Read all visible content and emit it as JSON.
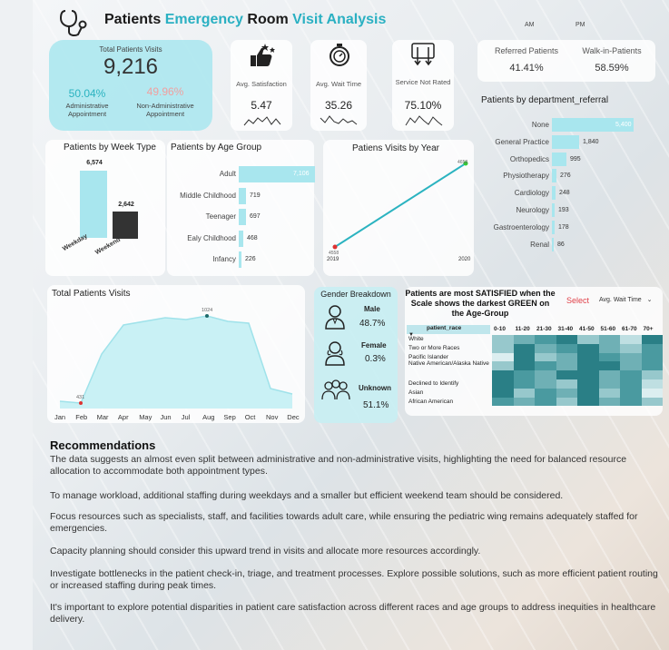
{
  "header": {
    "title_parts": [
      "Patients ",
      "Emergency",
      " Room ",
      "Visit Analysis"
    ],
    "am_label": "AM",
    "pm_label": "PM",
    "logo_icon": "stethoscope-icon"
  },
  "kpi_total": {
    "label": "Total Patients Visits",
    "value": "9,216",
    "admin_pct": "50.04%",
    "admin_label": "Administrative Appointment",
    "nonadmin_pct": "49.96%",
    "nonadmin_label": "Non-Administrative Appointment"
  },
  "kpi_satisfaction": {
    "label": "Avg. Satisfaction",
    "value": "5.47",
    "icon": "thumbs-up-stars-icon"
  },
  "kpi_wait": {
    "label": "Avg. Wait Time",
    "value": "35.26",
    "icon": "stopwatch-icon"
  },
  "kpi_not_rated": {
    "label": "Service Not Rated",
    "value": "75.10%",
    "icon": "rating-arrows-icon"
  },
  "referral": {
    "referred_label": "Referred Patients",
    "referred_value": "41.41%",
    "walkin_label": "Walk-in-Patients",
    "walkin_value": "58.59%"
  },
  "dept_chart": {
    "title": "Patients by department_referral",
    "categories": [
      "None",
      "General Practice",
      "Orthopedics",
      "Physiotherapy",
      "Cardiology",
      "Neurology",
      "Gastroenterology",
      "Renal"
    ],
    "value_labels": [
      "5,400",
      "1,840",
      "995",
      "276",
      "248",
      "193",
      "178",
      "86"
    ]
  },
  "week_chart": {
    "title": "Patients by Week Type",
    "categories": [
      "Weekday",
      "Weekend"
    ],
    "value_labels": [
      "6,574",
      "2,642"
    ]
  },
  "age_chart": {
    "title": "Patients by Age Group",
    "categories": [
      "Adult",
      "Middle Childhood",
      "Teenager",
      "Ealy Childhood",
      "Infancy"
    ],
    "value_labels": [
      "7,106",
      "719",
      "697",
      "468",
      "226"
    ]
  },
  "year_chart": {
    "title": "Patiens Visits by Year",
    "x_labels": [
      "2019",
      "2020"
    ],
    "point_labels": [
      "4558",
      "4658"
    ]
  },
  "total_visits_chart": {
    "title": "Total Patients Visits",
    "months": [
      "Jan",
      "Feb",
      "Mar",
      "Apr",
      "May",
      "Jun",
      "Jul",
      "Aug",
      "Sep",
      "Oct",
      "Nov",
      "Dec"
    ],
    "min_label": "431",
    "max_label": "1024"
  },
  "gender": {
    "title": "Gender Breakdown",
    "items": [
      {
        "label": "Male",
        "value": "48.7%",
        "icon": "male-user-icon"
      },
      {
        "label": "Female",
        "value": "0.3%",
        "icon": "female-user-icon"
      },
      {
        "label": "Unknown",
        "value": "51.1%",
        "icon": "group-users-icon"
      }
    ]
  },
  "heatmap": {
    "title": "Patients are most SATISFIED when the Scale shows the darkest GREEN on the Age-Group",
    "select_label": "Select",
    "select_value": "Avg. Wait Time",
    "row_header": "patient_race",
    "age_groups": [
      "0-10",
      "11-20",
      "21-30",
      "31-40",
      "41-50",
      "51-60",
      "61-70",
      "70+"
    ],
    "races": [
      "White",
      "Two or More Races",
      "Pacific Islander",
      "Native American/Alaska Native",
      "Declined to Identify",
      "Asian",
      "African American"
    ]
  },
  "recommendations": {
    "title": "Recommendations",
    "items": [
      "The data suggests an almost even split between administrative and non-administrative visits, highlighting the need for balanced resource allocation to accommodate both appointment types.",
      "To manage workload, additional staffing during weekdays and a smaller but efficient weekend team should be considered.",
      " Focus resources such as specialists, staff, and facilities towards adult care, while ensuring the pediatric wing remains adequately staffed for emergencies.",
      "Capacity planning should consider this upward trend in visits and allocate more resources accordingly.",
      "Investigate bottlenecks in the patient check-in, triage, and treatment processes. Explore possible solutions, such as more efficient patient routing or increased staffing during peak times.",
      "It's important to explore potential disparities in patient care satisfaction across different races and age groups to address inequities in healthcare delivery."
    ]
  },
  "colors": {
    "accent": "#2bb3c0",
    "bar": "#a8e6ee",
    "dark_bar": "#333333",
    "heat_dark": "#2a7f86",
    "heat_light": "#d8ecef"
  }
}
